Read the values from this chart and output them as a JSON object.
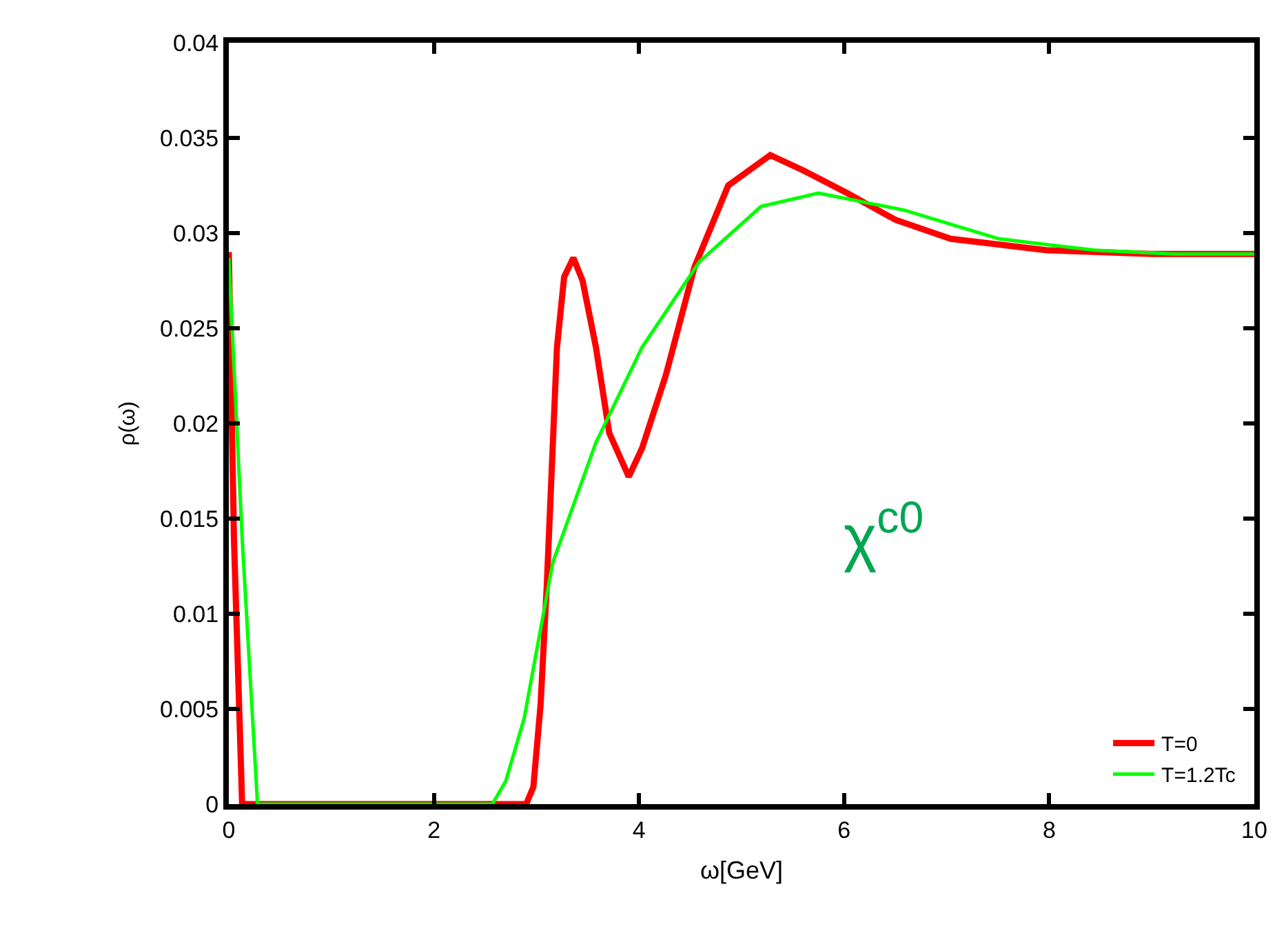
{
  "chart_data": {
    "type": "line",
    "xlabel": "ω[GeV]",
    "ylabel": "ρ(ω)",
    "xlim": [
      0,
      10
    ],
    "xticks": [
      0,
      2,
      4,
      6,
      8,
      10
    ],
    "ylim": [
      0,
      0.04
    ],
    "yticks": [
      0,
      0.005,
      0.01,
      0.015,
      0.02,
      0.025,
      0.03,
      0.035,
      0.04
    ],
    "legend": "bottom right",
    "marker": "none",
    "line_style": "solid",
    "annotations": [
      "χ$^{c0}$"
    ],
    "series": [
      {
        "name": "T=0",
        "color": "#ff0000",
        "x": [
          0,
          0.05,
          0.13,
          2.9,
          2.97,
          3.04,
          3.1,
          3.2,
          3.27,
          3.36,
          3.45,
          3.58,
          3.71,
          3.9,
          4.03,
          4.26,
          4.54,
          4.87,
          5.28,
          5.6,
          6.03,
          6.5,
          7.04,
          7.97,
          9,
          10
        ],
        "values": [
          0.029,
          0.014,
          0,
          0,
          0.0009,
          0.0052,
          0.0114,
          0.024,
          0.0277,
          0.0287,
          0.0275,
          0.024,
          0.0195,
          0.0172,
          0.0187,
          0.0225,
          0.0282,
          0.0325,
          0.0341,
          0.0333,
          0.0321,
          0.0307,
          0.0297,
          0.0291,
          0.0289,
          0.0289
        ]
      },
      {
        "name": "T=1.2Tc",
        "color": "#00ff00",
        "x": [
          0,
          0.13,
          0.28,
          2.57,
          2.7,
          2.88,
          3.16,
          3.58,
          4.03,
          4.59,
          5.19,
          5.75,
          6.59,
          7.51,
          8.44,
          9.2,
          10
        ],
        "values": [
          0.0287,
          0.014,
          0,
          0,
          0.0012,
          0.0045,
          0.0127,
          0.019,
          0.024,
          0.0285,
          0.0314,
          0.0321,
          0.0312,
          0.0297,
          0.0291,
          0.0289,
          0.0289
        ]
      }
    ]
  }
}
